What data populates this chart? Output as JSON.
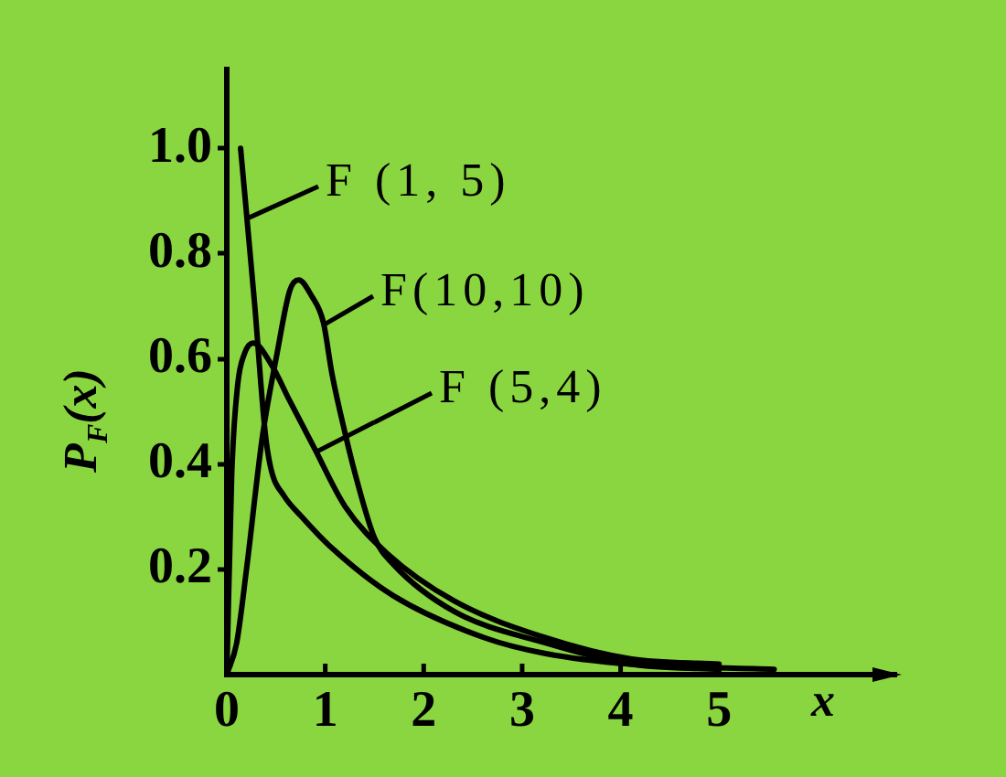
{
  "chart_data": {
    "type": "line",
    "xlabel": "x",
    "ylabel": "P$_{F}$(x)",
    "xlim": [
      0,
      6.8
    ],
    "ylim": [
      0,
      1.15
    ],
    "xticks": [
      0,
      1,
      2,
      3,
      4,
      5
    ],
    "yticks": [
      0.2,
      0.4,
      0.6,
      0.8,
      {
        "value": 1,
        "label": "1.0"
      }
    ],
    "grid": false,
    "legend": "top left",
    "marker": "none",
    "line_style": "solid",
    "series": [
      {
        "name": "F (1, 5)",
        "color": "#000000",
        "x": [
          0.14,
          0.28,
          0.39,
          0.45,
          0.58,
          0.76,
          1.07,
          1.69,
          2.62,
          3.24,
          4.1,
          5.56
        ],
        "values": [
          1.0,
          0.71,
          0.46,
          0.39,
          0.34,
          0.3,
          0.24,
          0.15,
          0.07,
          0.04,
          0.02,
          0.01
        ]
      },
      {
        "name": "F(10,10)",
        "color": "#000000",
        "x": [
          0,
          0.1,
          0.2,
          0.36,
          0.51,
          0.64,
          0.73,
          0.86,
          0.98,
          1.07,
          1.2,
          1.32,
          1.5,
          1.69,
          2.31,
          3.24,
          4.1,
          5.0
        ],
        "values": [
          0,
          0.06,
          0.2,
          0.45,
          0.61,
          0.73,
          0.75,
          0.72,
          0.67,
          0.57,
          0.46,
          0.37,
          0.26,
          0.21,
          0.12,
          0.06,
          0.02,
          0.01
        ]
      },
      {
        "name": "F (5,4)",
        "color": "#000000",
        "x": [
          0,
          0.05,
          0.11,
          0.18,
          0.27,
          0.45,
          0.64,
          0.89,
          1.2,
          1.63,
          2.31,
          3.24,
          4.1,
          5.0
        ],
        "values": [
          0,
          0.38,
          0.55,
          0.61,
          0.63,
          0.59,
          0.52,
          0.43,
          0.32,
          0.23,
          0.14,
          0.07,
          0.03,
          0.02
        ]
      }
    ]
  }
}
